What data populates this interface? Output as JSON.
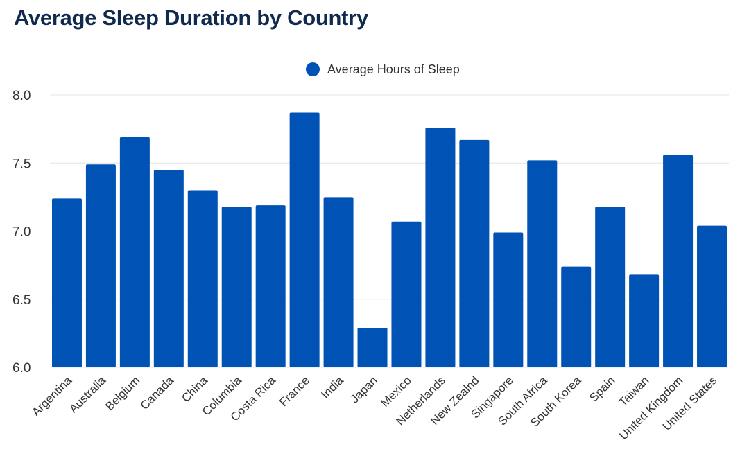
{
  "chart_data": {
    "type": "bar",
    "title": "Average Sleep Duration by Country",
    "xlabel": "",
    "ylabel": "",
    "ylim": [
      6.0,
      8.0
    ],
    "yticks": [
      "6.0",
      "6.5",
      "7.0",
      "7.5",
      "8.0"
    ],
    "grid": true,
    "legend_position": "top-center",
    "categories": [
      "Argentina",
      "Australia",
      "Belgium",
      "Canada",
      "China",
      "Columbia",
      "Costa Rica",
      "France",
      "India",
      "Japan",
      "Mexico",
      "Netherlands",
      "New Zealnd",
      "Singapore",
      "South Africa",
      "South Korea",
      "Spain",
      "Taiwan",
      "United Kingdom",
      "United States"
    ],
    "series": [
      {
        "name": "Average Hours of Sleep",
        "color": "#0052b4",
        "values": [
          7.24,
          7.49,
          7.69,
          7.45,
          7.3,
          7.18,
          7.19,
          7.87,
          7.25,
          6.29,
          7.07,
          7.76,
          7.67,
          6.99,
          7.52,
          6.74,
          7.18,
          6.68,
          7.56,
          7.04
        ]
      }
    ]
  }
}
